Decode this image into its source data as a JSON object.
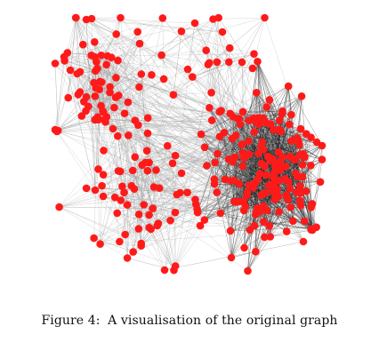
{
  "figure": {
    "caption_label": "Figure 4:",
    "caption_text": "A visualisation of the original graph",
    "node_color": "#ff1a1a",
    "edge_color": "#9a9a9a",
    "dense_edge_color": "#222222"
  }
}
